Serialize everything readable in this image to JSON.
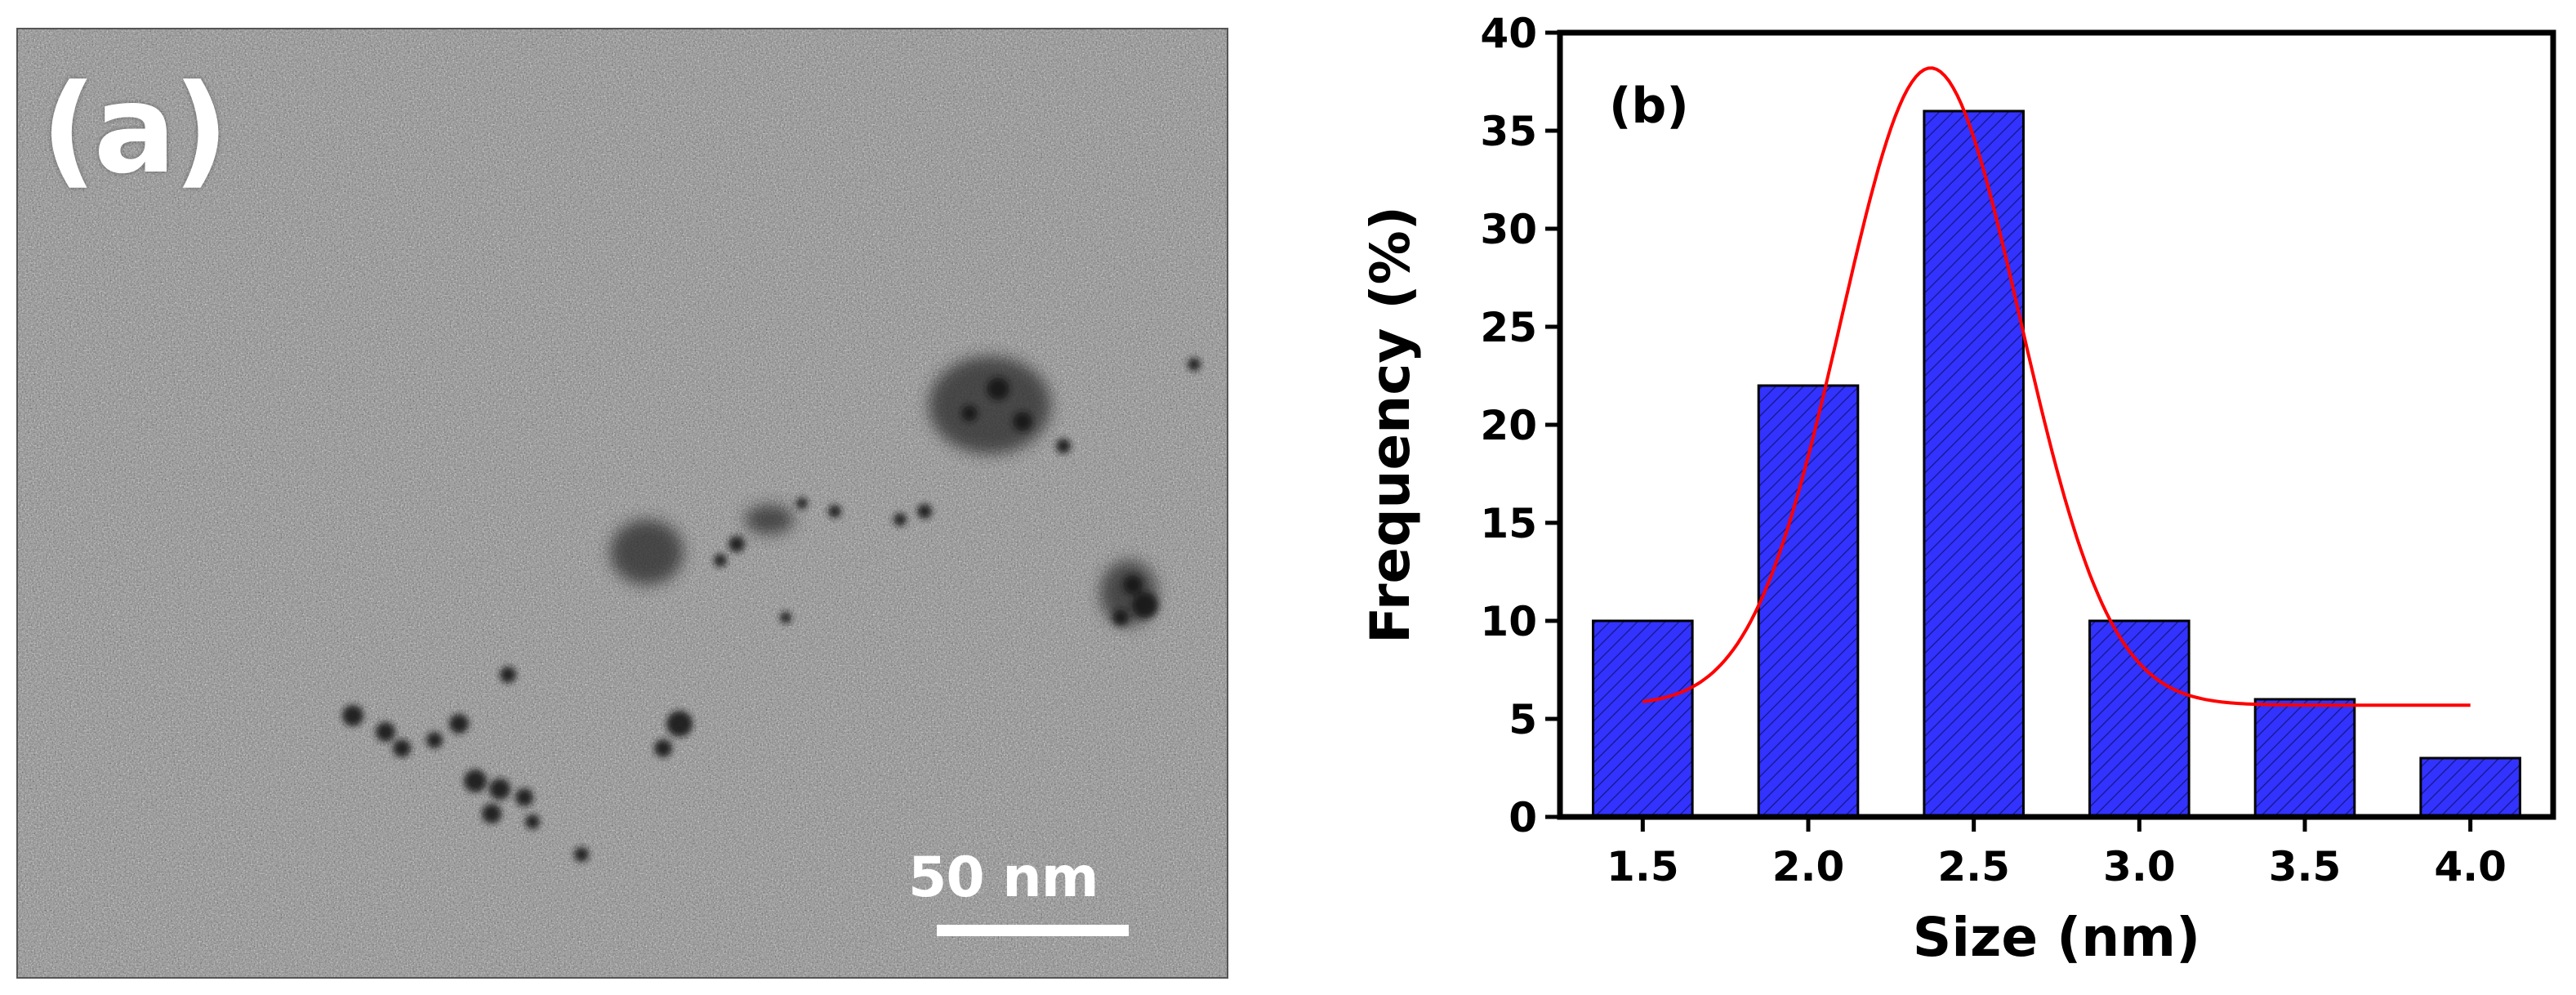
{
  "panel_a": {
    "label": "(a)",
    "scale_bar_text": "50 nm"
  },
  "chart_data": {
    "type": "bar",
    "panel_label": "(b)",
    "title": "",
    "xlabel": "Size (nm)",
    "ylabel": "Frequency (%)",
    "categories": [
      "1.5",
      "2.0",
      "2.5",
      "3.0",
      "3.5",
      "4.0"
    ],
    "x": [
      1.5,
      2.0,
      2.5,
      3.0,
      3.5,
      4.0
    ],
    "values": [
      10,
      22,
      36,
      10,
      6,
      3
    ],
    "bar_width": 0.3,
    "xlim": [
      1.25,
      4.25
    ],
    "ylim": [
      0,
      40
    ],
    "yticks": [
      0,
      5,
      10,
      15,
      20,
      25,
      30,
      35,
      40
    ],
    "bar_color": "#3333ff",
    "fit_curve": {
      "type": "gaussian",
      "color": "#ff0000",
      "y0": 5.7,
      "amplitude": 32.5,
      "center": 2.37,
      "sigma": 0.27,
      "x_range": [
        1.5,
        4.0
      ]
    },
    "grid": false,
    "legend": "none"
  }
}
